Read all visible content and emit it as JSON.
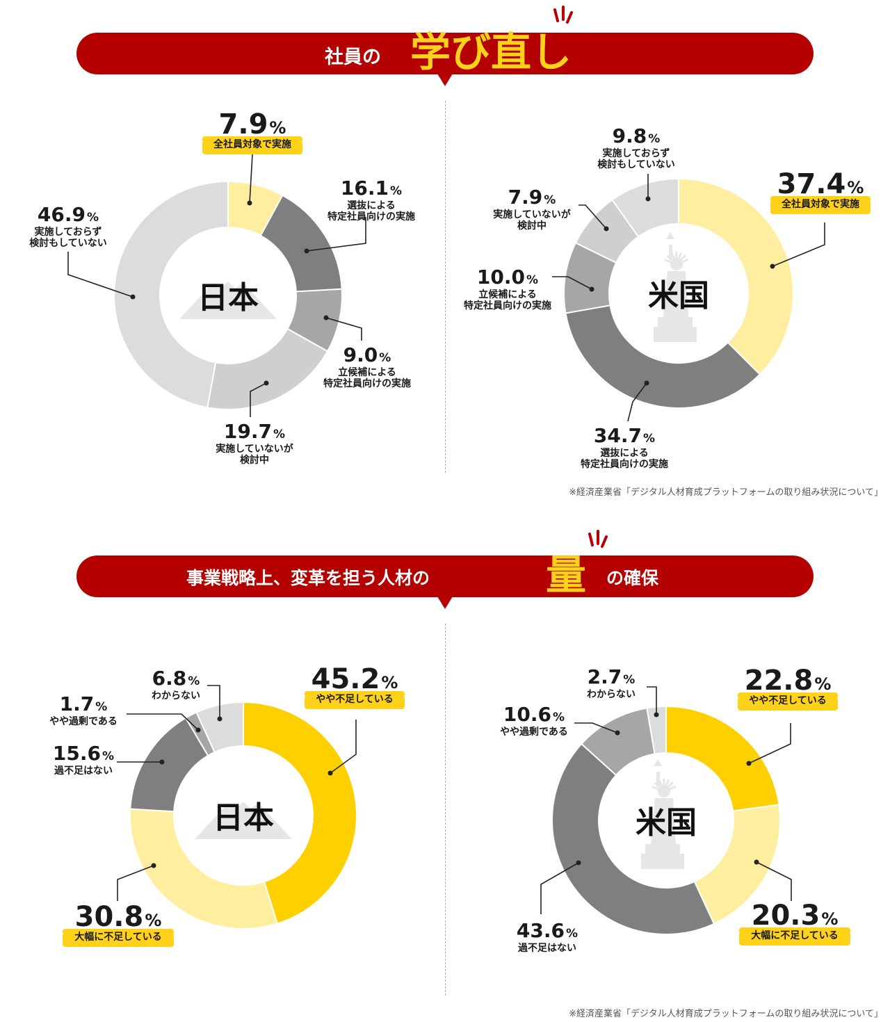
{
  "section1": {
    "title_prefix": "社員の",
    "title_highlight": "学び直し",
    "source": "※経済産業省「デジタル人材育成プラットフォームの取り組み状況について」"
  },
  "section2": {
    "title_prefix": "事業戦略上、変革を担う人材の",
    "title_highlight": "量",
    "title_suffix": "の確保",
    "source": "※経済産業省「デジタル人材育成プラットフォームの取り組み状況について」"
  },
  "colors": {
    "banner": "#b50000",
    "highlight": "#ffd21a",
    "yellow_strong": "#ffd000",
    "yellow_light": "#ffeda0",
    "gray_dark": "#7f7f7f",
    "gray_mid": "#a6a6a6",
    "gray_light": "#cfcfcf",
    "gray_lighter": "#dcdcdc"
  },
  "chart_data": [
    {
      "type": "pie",
      "center_label": "日本",
      "center_icon": "mount-fuji-icon",
      "series": [
        {
          "label": [
            "全社員対象で実施"
          ],
          "value": 7.9,
          "color": "#ffeda0",
          "highlight": true
        },
        {
          "label": [
            "選抜による",
            "特定社員向けの実施"
          ],
          "value": 16.1,
          "color": "#7f7f7f"
        },
        {
          "label": [
            "立候補による",
            "特定社員向けの実施"
          ],
          "value": 9.0,
          "color": "#a6a6a6"
        },
        {
          "label": [
            "実施していないが",
            "検討中"
          ],
          "value": 19.7,
          "color": "#cfcfcf"
        },
        {
          "label": [
            "実施しておらず",
            "検討もしていない"
          ],
          "value": 46.9,
          "color": "#dcdcdc"
        }
      ]
    },
    {
      "type": "pie",
      "center_label": "米国",
      "center_icon": "statue-of-liberty-icon",
      "series": [
        {
          "label": [
            "全社員対象で実施"
          ],
          "value": 37.4,
          "color": "#ffeda0",
          "highlight": true
        },
        {
          "label": [
            "選抜による",
            "特定社員向けの実施"
          ],
          "value": 34.7,
          "color": "#7f7f7f"
        },
        {
          "label": [
            "立候補による",
            "特定社員向けの実施"
          ],
          "value": 10.0,
          "color": "#a6a6a6"
        },
        {
          "label": [
            "実施していないが",
            "検討中"
          ],
          "value": 7.9,
          "color": "#cfcfcf"
        },
        {
          "label": [
            "実施しておらず",
            "検討もしていない"
          ],
          "value": 9.8,
          "color": "#dcdcdc"
        }
      ]
    },
    {
      "type": "pie",
      "center_label": "日本",
      "center_icon": "mount-fuji-icon",
      "series": [
        {
          "label": [
            "やや不足している"
          ],
          "value": 45.2,
          "color": "#ffd000",
          "highlight": true
        },
        {
          "label": [
            "大幅に不足している"
          ],
          "value": 30.8,
          "color": "#ffeda0",
          "highlight": true
        },
        {
          "label": [
            "過不足はない"
          ],
          "value": 15.6,
          "color": "#7f7f7f"
        },
        {
          "label": [
            "やや過剰である"
          ],
          "value": 1.7,
          "color": "#a6a6a6"
        },
        {
          "label": [
            "わからない"
          ],
          "value": 6.8,
          "color": "#dcdcdc"
        }
      ]
    },
    {
      "type": "pie",
      "center_label": "米国",
      "center_icon": "statue-of-liberty-icon",
      "series": [
        {
          "label": [
            "やや不足している"
          ],
          "value": 22.8,
          "color": "#ffd000",
          "highlight": true
        },
        {
          "label": [
            "大幅に不足している"
          ],
          "value": 20.3,
          "color": "#ffeda0",
          "highlight": true
        },
        {
          "label": [
            "過不足はない"
          ],
          "value": 43.6,
          "color": "#7f7f7f"
        },
        {
          "label": [
            "やや過剰である"
          ],
          "value": 10.6,
          "color": "#a6a6a6"
        },
        {
          "label": [
            "わからない"
          ],
          "value": 2.7,
          "color": "#dcdcdc"
        }
      ]
    }
  ]
}
